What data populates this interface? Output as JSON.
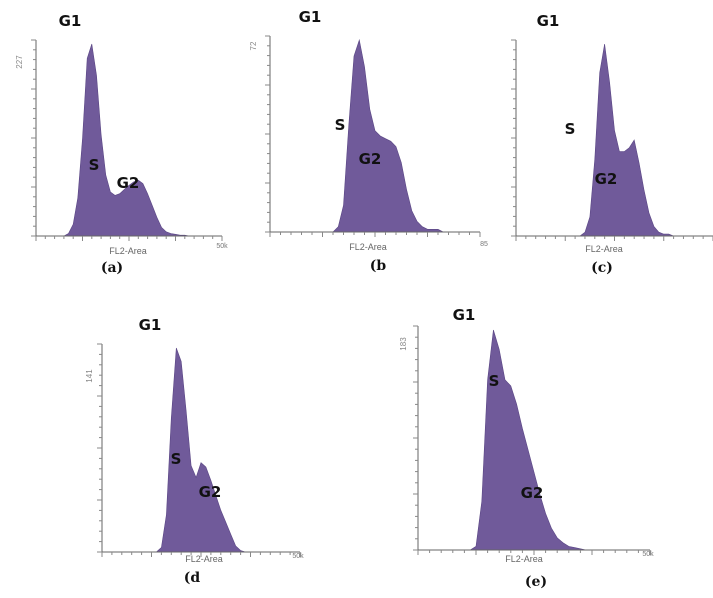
{
  "chart_data": [
    {
      "type": "area",
      "panel_label": "(a)",
      "xlabel": "FL2-Area",
      "ymax_label": "227",
      "xmax_label": "50k",
      "peaks": [
        "G1",
        "S",
        "G2"
      ],
      "x": [
        0,
        1,
        2,
        3,
        4,
        5,
        6,
        7,
        8,
        9,
        10,
        11,
        12,
        13,
        14,
        15,
        16,
        17,
        18,
        19,
        20,
        21,
        22,
        23,
        24,
        25,
        26,
        27,
        28,
        29,
        30,
        31,
        32,
        33,
        34,
        35,
        36,
        37,
        38,
        39,
        40
      ],
      "values": [
        0,
        0,
        0,
        0,
        0,
        0,
        0,
        3,
        14,
        45,
        115,
        210,
        227,
        190,
        120,
        72,
        52,
        48,
        50,
        55,
        60,
        64,
        66,
        62,
        50,
        36,
        22,
        10,
        5,
        3,
        2,
        1,
        1,
        0,
        0,
        0,
        0,
        0,
        0,
        0,
        0
      ]
    },
    {
      "type": "area",
      "panel_label": "(b",
      "xlabel": "FL2-Area",
      "ymax_label": "72",
      "xmax_label": "85",
      "peaks": [
        "G1",
        "S",
        "G2"
      ],
      "x": [
        0,
        1,
        2,
        3,
        4,
        5,
        6,
        7,
        8,
        9,
        10,
        11,
        12,
        13,
        14,
        15,
        16,
        17,
        18,
        19,
        20,
        21,
        22,
        23,
        24,
        25,
        26,
        27,
        28,
        29,
        30,
        31,
        32,
        33,
        34,
        35,
        36,
        37,
        38,
        39,
        40
      ],
      "values": [
        0,
        0,
        0,
        0,
        0,
        0,
        0,
        0,
        0,
        0,
        0,
        0,
        0,
        2,
        10,
        40,
        66,
        72,
        62,
        46,
        38,
        36,
        35,
        34,
        32,
        26,
        16,
        8,
        4,
        2,
        1,
        1,
        1,
        0,
        0,
        0,
        0,
        0,
        0,
        0,
        0
      ]
    },
    {
      "type": "area",
      "panel_label": "(c)",
      "xlabel": "FL2-Area",
      "ymax_label": "",
      "xmax_label": "",
      "peaks": [
        "G1",
        "S",
        "G2"
      ],
      "x": [
        0,
        1,
        2,
        3,
        4,
        5,
        6,
        7,
        8,
        9,
        10,
        11,
        12,
        13,
        14,
        15,
        16,
        17,
        18,
        19,
        20,
        21,
        22,
        23,
        24,
        25,
        26,
        27,
        28,
        29,
        30,
        31,
        32,
        33,
        34,
        35,
        36,
        37,
        38,
        39,
        40
      ],
      "values": [
        0,
        0,
        0,
        0,
        0,
        0,
        0,
        0,
        0,
        0,
        0,
        0,
        0,
        0,
        2,
        10,
        40,
        85,
        100,
        80,
        55,
        44,
        44,
        46,
        50,
        38,
        24,
        12,
        5,
        2,
        1,
        1,
        0,
        0,
        0,
        0,
        0,
        0,
        0,
        0,
        0
      ]
    },
    {
      "type": "area",
      "panel_label": "(d",
      "xlabel": "FL2-Area",
      "ymax_label": "141",
      "xmax_label": "50k",
      "peaks": [
        "G1",
        "S",
        "G2"
      ],
      "x": [
        0,
        1,
        2,
        3,
        4,
        5,
        6,
        7,
        8,
        9,
        10,
        11,
        12,
        13,
        14,
        15,
        16,
        17,
        18,
        19,
        20,
        21,
        22,
        23,
        24,
        25,
        26,
        27,
        28,
        29,
        30,
        31,
        32,
        33,
        34,
        35,
        36,
        37,
        38,
        39,
        40
      ],
      "values": [
        0,
        0,
        0,
        0,
        0,
        0,
        0,
        0,
        0,
        0,
        0,
        0,
        3,
        25,
        90,
        137,
        128,
        95,
        58,
        50,
        60,
        57,
        48,
        38,
        28,
        20,
        12,
        4,
        1,
        0,
        0,
        0,
        0,
        0,
        0,
        0,
        0,
        0,
        0,
        0,
        0
      ]
    },
    {
      "type": "area",
      "panel_label": "(e)",
      "xlabel": "FL2-Area",
      "ymax_label": "183",
      "xmax_label": "50k",
      "peaks": [
        "G1",
        "S",
        "G2"
      ],
      "x": [
        0,
        1,
        2,
        3,
        4,
        5,
        6,
        7,
        8,
        9,
        10,
        11,
        12,
        13,
        14,
        15,
        16,
        17,
        18,
        19,
        20,
        21,
        22,
        23,
        24,
        25,
        26,
        27,
        28,
        29,
        30,
        31,
        32,
        33,
        34,
        35,
        36,
        37,
        38,
        39,
        40
      ],
      "values": [
        0,
        0,
        0,
        0,
        0,
        0,
        0,
        0,
        0,
        0,
        3,
        40,
        140,
        181,
        165,
        140,
        135,
        120,
        100,
        82,
        64,
        46,
        30,
        18,
        10,
        6,
        3,
        2,
        1,
        0,
        0,
        0,
        0,
        0,
        0,
        0,
        0,
        0,
        0,
        0,
        0
      ]
    }
  ]
}
